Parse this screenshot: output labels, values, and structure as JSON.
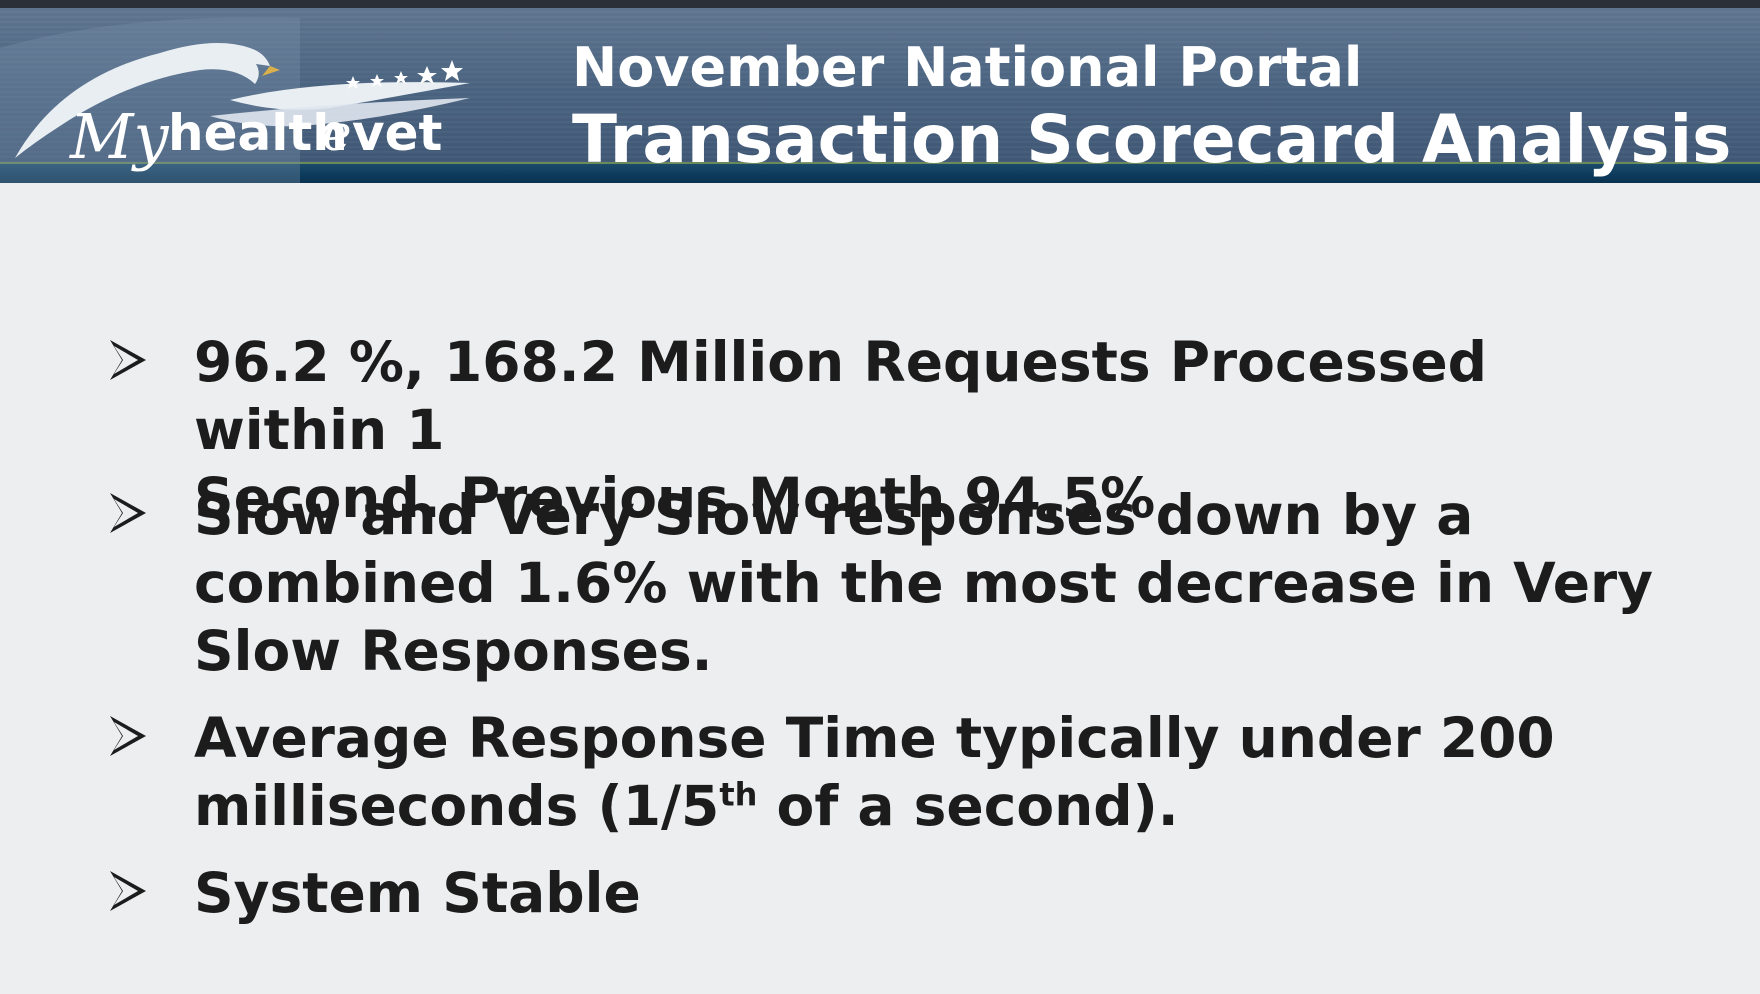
{
  "header": {
    "logo": {
      "text": "My healthevet",
      "word_my": "My",
      "word_health": "health",
      "word_e": "e",
      "word_vet": "vet"
    },
    "title_line1": "November National Portal",
    "title_line2": "Transaction Scorecard Analysis"
  },
  "bullets": [
    {
      "line1": "96.2 %, 168.2 Million Requests Processed within 1",
      "line2": "Second. Previous Month 94.5%"
    },
    {
      "line1": "Slow and Very Slow responses down by a",
      "line2": "combined 1.6% with the most decrease in Very",
      "line3": "Slow Responses."
    },
    {
      "line1": "Average Response Time typically under 200",
      "line2_before": "milliseconds (1/5",
      "line2_sup": "th",
      "line2_after": " of a second)."
    },
    {
      "line1": "System Stable"
    }
  ],
  "colors": {
    "header_bg": "#4a6380",
    "header_rule": "#0c3a5b",
    "slide_bg": "#eceeef",
    "text": "#1c1c1c"
  },
  "icons": [
    "eagle-logo",
    "star-icon",
    "arrow-bullet-icon"
  ]
}
